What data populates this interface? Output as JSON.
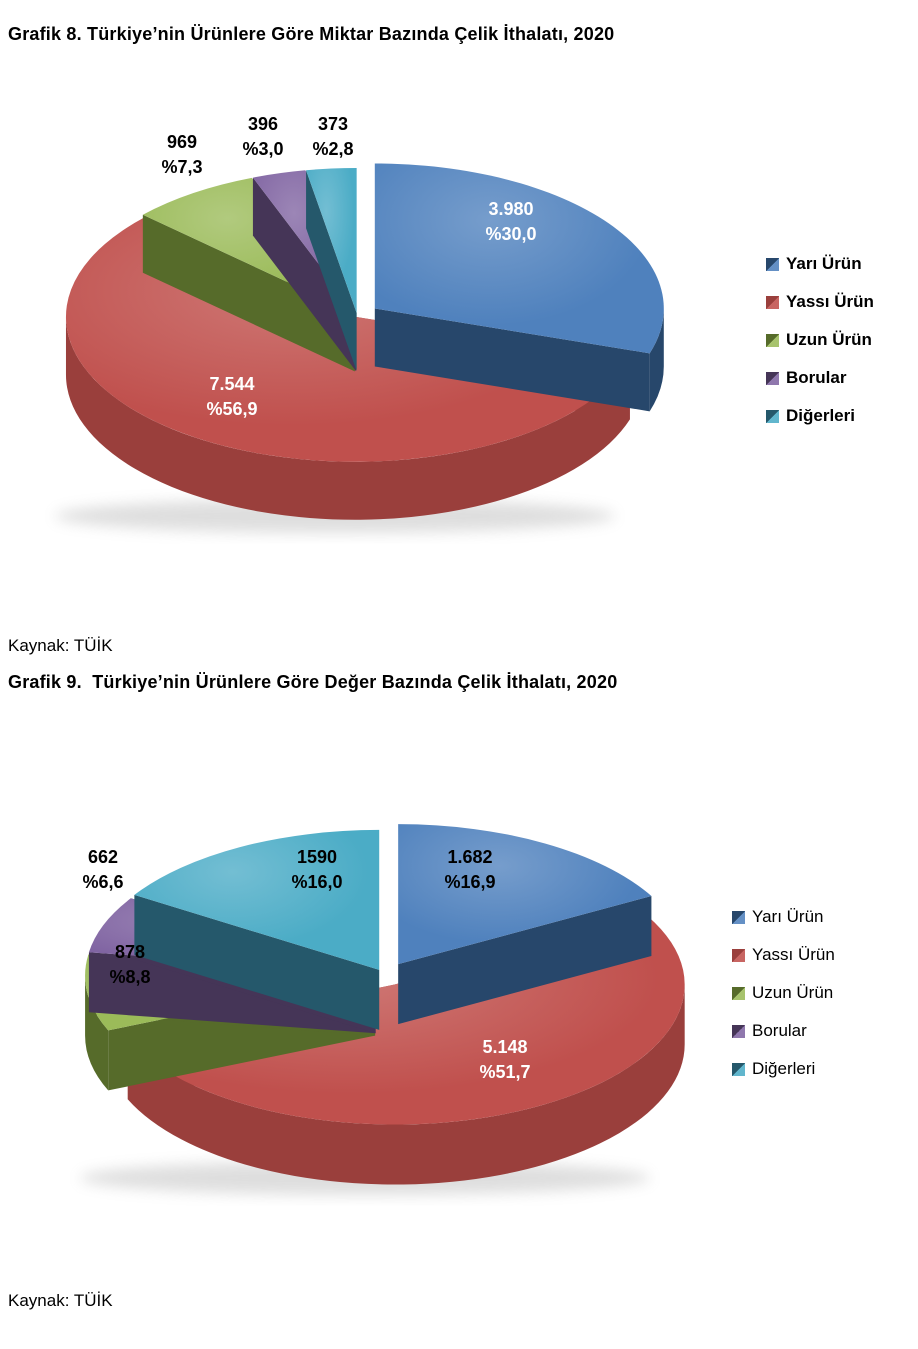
{
  "page": {
    "background": "#FFFFFF"
  },
  "chart_data": [
    {
      "type": "pie",
      "title": "Grafik 8. Türkiye’nin Ürünlere Göre Miktar Bazında Çelik İthalatı, 2020",
      "source": "Kaynak: TÜİK",
      "categories": [
        "Yarı Ürün",
        "Yassı Ürün",
        "Uzun Ürün",
        "Borular",
        "Diğerleri"
      ],
      "values": [
        3980,
        7544,
        969,
        396,
        373
      ],
      "percents": [
        30.0,
        56.9,
        7.3,
        3.0,
        2.8
      ],
      "value_labels": [
        "3.980",
        "7.544",
        "969",
        "396",
        "373"
      ],
      "percent_labels": [
        "%30,0",
        "%56,9",
        "%7,3",
        "%3,0",
        "%2,8"
      ],
      "colors": [
        "#4F81BD",
        "#C0504D",
        "#9BBB59",
        "#8064A2",
        "#4BACC6"
      ],
      "dark_colors": [
        "#27476B",
        "#9A3F3C",
        "#566B2A",
        "#453557",
        "#25586B"
      ],
      "legend_position": "right",
      "style": "3d-exploded-pie",
      "start_angle": "top-clockwise"
    },
    {
      "type": "pie",
      "title": "Grafik 9.  Türkiye’nin Ürünlere Göre Değer Bazında Çelik İthalatı, 2020",
      "source": "Kaynak: TÜİK",
      "categories": [
        "Yarı Ürün",
        "Yassı Ürün",
        "Uzun Ürün",
        "Borular",
        "Diğerleri"
      ],
      "values": [
        1682,
        5148,
        878,
        662,
        1590
      ],
      "percents": [
        16.9,
        51.7,
        8.8,
        6.6,
        16.0
      ],
      "value_labels": [
        "1.682",
        "5.148",
        "878",
        "662",
        "1590"
      ],
      "percent_labels": [
        "%16,9",
        "%51,7",
        "%8,8",
        "%6,6",
        "%16,0"
      ],
      "colors": [
        "#4F81BD",
        "#C0504D",
        "#9BBB59",
        "#8064A2",
        "#4BACC6"
      ],
      "dark_colors": [
        "#27476B",
        "#9A3F3C",
        "#566B2A",
        "#453557",
        "#25586B"
      ],
      "legend_position": "right",
      "style": "3d-exploded-pie",
      "start_angle": "top-clockwise"
    }
  ]
}
